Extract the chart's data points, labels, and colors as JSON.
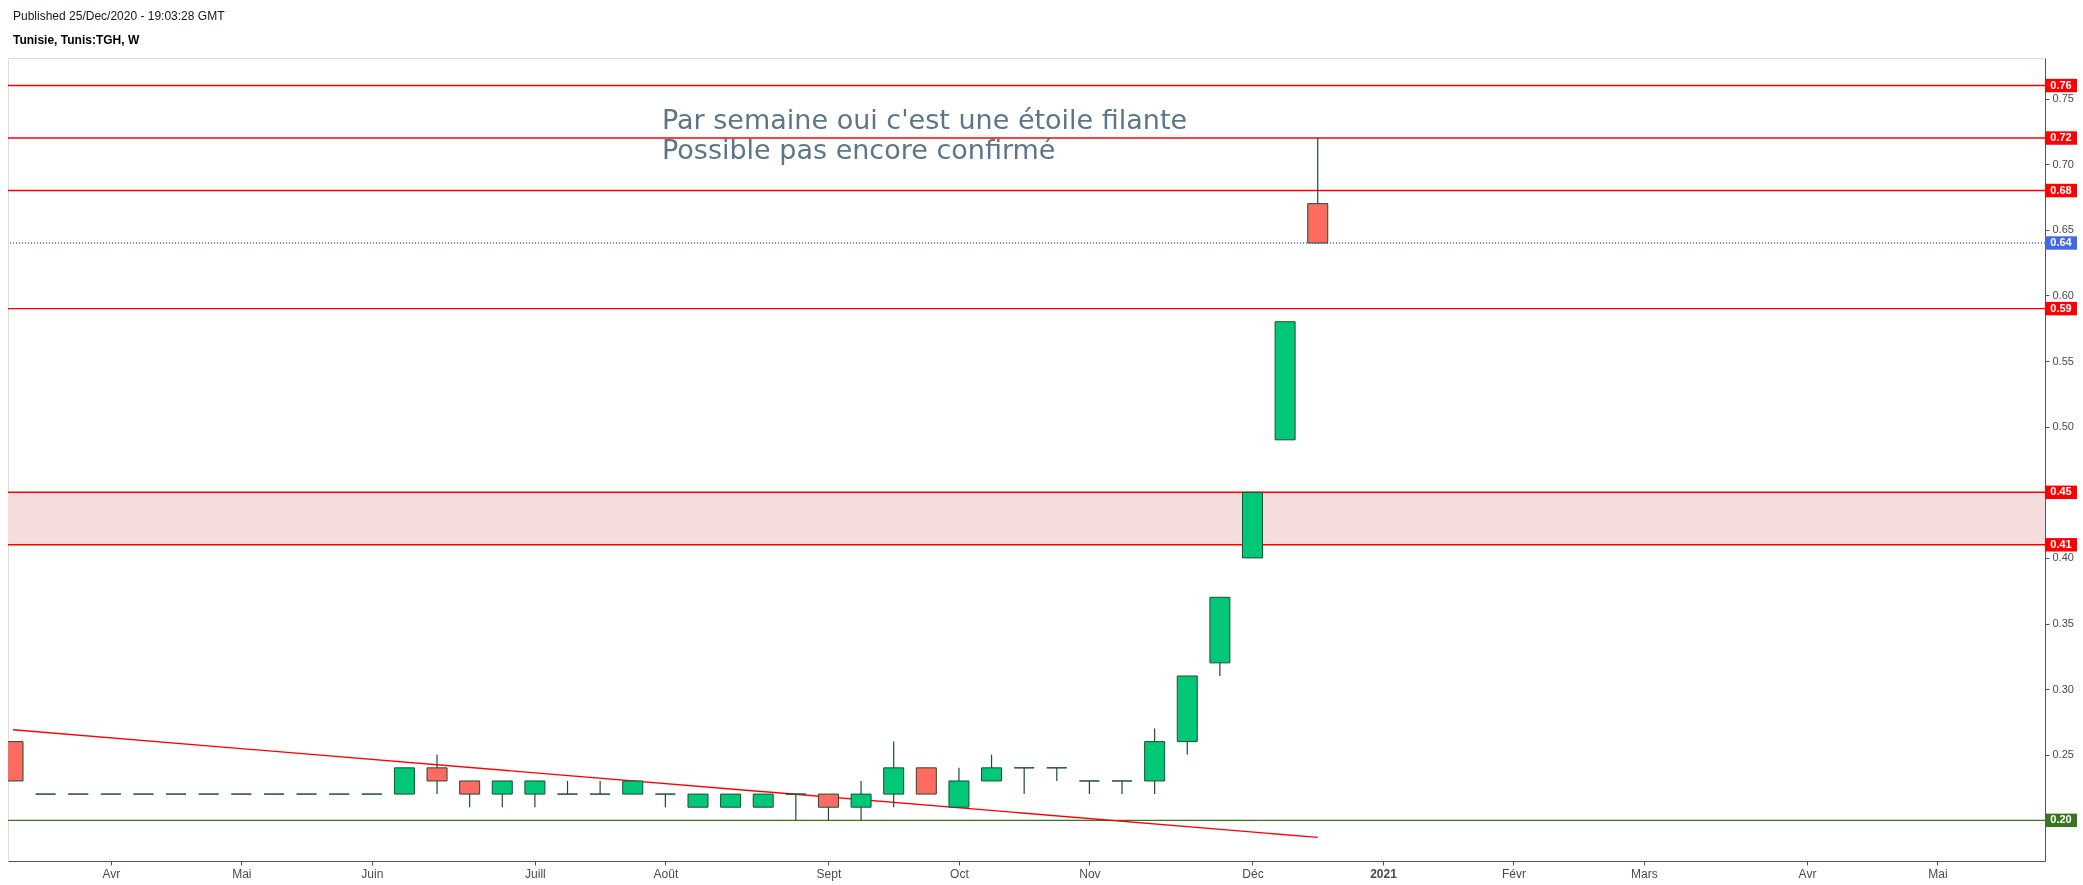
{
  "chart_data": {
    "type": "candlestick",
    "title": "Tunisie, Tunis:TGH, W",
    "annotations": [
      "Published 25/Dec/2020 - 19:03:28 GMT",
      "Par semaine oui c'est une étoile filante",
      "Possible pas encore confirmé"
    ],
    "x": [
      "2020-03-16",
      "2020-03-23",
      "2020-03-30",
      "2020-04-06",
      "2020-04-13",
      "2020-04-20",
      "2020-04-27",
      "2020-05-04",
      "2020-05-11",
      "2020-05-18",
      "2020-05-25",
      "2020-06-01",
      "2020-06-08",
      "2020-06-15",
      "2020-06-22",
      "2020-06-29",
      "2020-07-06",
      "2020-07-13",
      "2020-07-20",
      "2020-07-27",
      "2020-08-03",
      "2020-08-10",
      "2020-08-17",
      "2020-08-24",
      "2020-08-31",
      "2020-09-07",
      "2020-09-14",
      "2020-09-21",
      "2020-09-28",
      "2020-10-05",
      "2020-10-12",
      "2020-10-19",
      "2020-10-26",
      "2020-11-02",
      "2020-11-09",
      "2020-11-16",
      "2020-11-23",
      "2020-11-30",
      "2020-12-07",
      "2020-12-14",
      "2020-12-21"
    ],
    "ohlc": [
      [
        0.26,
        0.26,
        0.23,
        0.23
      ],
      [
        0.22,
        0.22,
        0.22,
        0.22
      ],
      [
        0.22,
        0.22,
        0.22,
        0.22
      ],
      [
        0.22,
        0.22,
        0.22,
        0.22
      ],
      [
        0.22,
        0.22,
        0.22,
        0.22
      ],
      [
        0.22,
        0.22,
        0.22,
        0.22
      ],
      [
        0.22,
        0.22,
        0.22,
        0.22
      ],
      [
        0.22,
        0.22,
        0.22,
        0.22
      ],
      [
        0.22,
        0.22,
        0.22,
        0.22
      ],
      [
        0.22,
        0.22,
        0.22,
        0.22
      ],
      [
        0.22,
        0.22,
        0.22,
        0.22
      ],
      [
        0.22,
        0.22,
        0.22,
        0.22
      ],
      [
        0.22,
        0.24,
        0.22,
        0.24
      ],
      [
        0.24,
        0.25,
        0.22,
        0.23
      ],
      [
        0.23,
        0.23,
        0.21,
        0.22
      ],
      [
        0.22,
        0.23,
        0.21,
        0.23
      ],
      [
        0.22,
        0.23,
        0.21,
        0.23
      ],
      [
        0.22,
        0.23,
        0.22,
        0.22
      ],
      [
        0.22,
        0.23,
        0.22,
        0.22
      ],
      [
        0.22,
        0.23,
        0.22,
        0.23
      ],
      [
        0.22,
        0.22,
        0.21,
        0.22
      ],
      [
        0.21,
        0.22,
        0.21,
        0.22
      ],
      [
        0.21,
        0.22,
        0.21,
        0.22
      ],
      [
        0.21,
        0.22,
        0.21,
        0.22
      ],
      [
        0.22,
        0.22,
        0.2,
        0.22
      ],
      [
        0.22,
        0.22,
        0.2,
        0.21
      ],
      [
        0.21,
        0.23,
        0.2,
        0.22
      ],
      [
        0.22,
        0.26,
        0.21,
        0.24
      ],
      [
        0.24,
        0.24,
        0.22,
        0.22
      ],
      [
        0.21,
        0.24,
        0.21,
        0.23
      ],
      [
        0.23,
        0.25,
        0.23,
        0.24
      ],
      [
        0.24,
        0.24,
        0.22,
        0.24
      ],
      [
        0.24,
        0.24,
        0.23,
        0.24
      ],
      [
        0.23,
        0.23,
        0.22,
        0.23
      ],
      [
        0.23,
        0.23,
        0.22,
        0.23
      ],
      [
        0.23,
        0.27,
        0.22,
        0.26
      ],
      [
        0.26,
        0.31,
        0.25,
        0.31
      ],
      [
        0.32,
        0.37,
        0.31,
        0.37
      ],
      [
        0.4,
        0.45,
        0.4,
        0.45
      ],
      [
        0.49,
        0.58,
        0.49,
        0.58
      ],
      [
        0.67,
        0.72,
        0.64,
        0.64
      ]
    ],
    "colors": [
      "#ff6a61",
      "#1d4d33",
      "#1d4d33",
      "#1d4d33",
      "#1d4d33",
      "#1d4d33",
      "#1d4d33",
      "#1d4d33",
      "#1d4d33",
      "#1d4d33",
      "#1d4d33",
      "#1d4d33",
      "#00c876",
      "#ff6a61",
      "#ff6a61",
      "#00c876",
      "#00c876",
      "#1d4d33",
      "#1d4d33",
      "#00c876",
      "#1d4d33",
      "#00c876",
      "#00c876",
      "#00c876",
      "#1d4d33",
      "#ff6a61",
      "#00c876",
      "#00c876",
      "#ff6a61",
      "#00c876",
      "#00c876",
      "#1d4d33",
      "#1d4d33",
      "#1d4d33",
      "#1d4d33",
      "#00c876",
      "#00c876",
      "#00c876",
      "#00c876",
      "#00c876",
      "#ff6a61"
    ],
    "series": [
      {
        "type": "line",
        "x": [
          "2020-03-16",
          "2020-12-21"
        ],
        "values": [
          0.269,
          0.187
        ],
        "color": "#ff0000"
      }
    ],
    "xlim": [
      "2020-03-16",
      "2021-05-25"
    ],
    "xticks": [
      {
        "value": "2020-04-06",
        "label": "Avr"
      },
      {
        "value": "2020-05-04",
        "label": "Mai"
      },
      {
        "value": "2020-06-01",
        "label": "Juin"
      },
      {
        "value": "2020-07-06",
        "label": "Juill"
      },
      {
        "value": "2020-08-03",
        "label": "Août"
      },
      {
        "value": "2020-09-07",
        "label": "Sept"
      },
      {
        "value": "2020-10-05",
        "label": "Oct"
      },
      {
        "value": "2020-11-02",
        "label": "Nov"
      },
      {
        "value": "2020-12-07",
        "label": "Déc"
      },
      {
        "value": "2021-01-04",
        "label": "2021"
      },
      {
        "value": "2021-02-01",
        "label": "Févr"
      },
      {
        "value": "2021-03-01",
        "label": "Mars"
      },
      {
        "value": "2021-04-05",
        "label": "Avr"
      },
      {
        "value": "2021-05-03",
        "label": "Mai"
      }
    ],
    "ylim": [
      0.169,
      0.781
    ],
    "yticks": [
      0.25,
      {
        "value": 0.3,
        "label": "0.30"
      },
      0.35,
      {
        "value": 0.4,
        "label": "0.40"
      },
      {
        "value": 0.5,
        "label": "0.50"
      },
      0.55,
      {
        "value": 0.6,
        "label": "0.60"
      },
      0.65,
      {
        "value": 0.7,
        "label": "0.70"
      },
      0.75
    ],
    "ref_lines": [
      {
        "axis": "y",
        "value": 0.76,
        "label": "0.76",
        "color": "#ff0000"
      },
      {
        "axis": "y",
        "value": 0.72,
        "label": "0.72",
        "color": "#ff0000"
      },
      {
        "axis": "y",
        "value": 0.68,
        "label": "0.68",
        "color": "#ff0000"
      },
      {
        "axis": "y",
        "value": 0.64,
        "label": "0.64",
        "color": "#4169e1",
        "line_style": "dotted"
      },
      {
        "axis": "y",
        "value": 0.59,
        "label": "0.59",
        "color": "#ff0000"
      },
      {
        "axis": "y",
        "value": 0.45,
        "label": "0.45",
        "color": "#ff0000"
      },
      {
        "axis": "y",
        "value": 0.41,
        "label": "0.41",
        "color": "#ff0000"
      },
      {
        "axis": "y",
        "value": 0.2,
        "label": "0.20",
        "color": "#38761d"
      }
    ],
    "bands": [
      {
        "axis": "y",
        "from": 0.41,
        "to": 0.45,
        "color": "#f6dddd"
      }
    ],
    "grid": false
  }
}
